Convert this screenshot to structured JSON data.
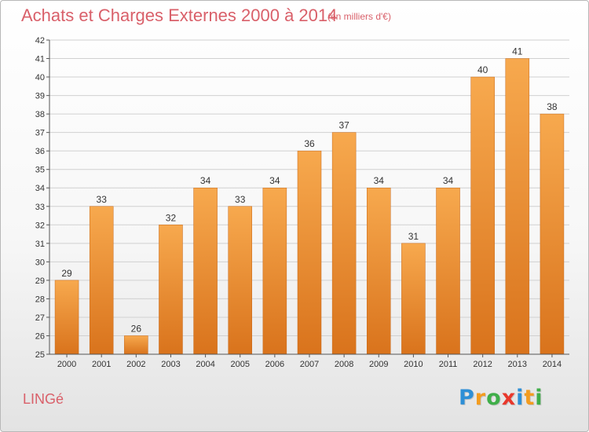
{
  "header": {
    "title": "Achats et Charges Externes 2000 à 2014",
    "subtitle": "(en milliers d'€)"
  },
  "footer": {
    "place": "LINGé",
    "logo_letters": [
      "P",
      "r",
      "o",
      "x",
      "i",
      "t",
      "i"
    ],
    "logo_colors": [
      "#2e8fd6",
      "#f39c1f",
      "#3fae49",
      "#e8382c",
      "#2e8fd6",
      "#f39c1f",
      "#3fae49"
    ]
  },
  "colors": {
    "bar_light": "#f7a94e",
    "bar_dark": "#d9731c",
    "grid": "#d0d0d0",
    "axis": "#555555",
    "accent_text": "#d9606a"
  },
  "chart_data": {
    "type": "bar",
    "categories": [
      "2000",
      "2001",
      "2002",
      "2003",
      "2004",
      "2005",
      "2006",
      "2007",
      "2008",
      "2009",
      "2010",
      "2011",
      "2012",
      "2013",
      "2014"
    ],
    "values": [
      29,
      33,
      26,
      32,
      34,
      33,
      34,
      36,
      37,
      34,
      31,
      34,
      40,
      41,
      38
    ],
    "data_labels": [
      "29",
      "33",
      "26",
      "32",
      "34",
      "33",
      "34",
      "36",
      "37",
      "34",
      "31",
      "34",
      "40",
      "41",
      "38"
    ],
    "yticks": [
      "25",
      "26",
      "27",
      "28",
      "29",
      "30",
      "31",
      "32",
      "33",
      "34",
      "35",
      "36",
      "37",
      "38",
      "39",
      "40",
      "41",
      "42"
    ],
    "ylim": [
      25,
      42
    ],
    "grid": true,
    "legend": "none"
  }
}
